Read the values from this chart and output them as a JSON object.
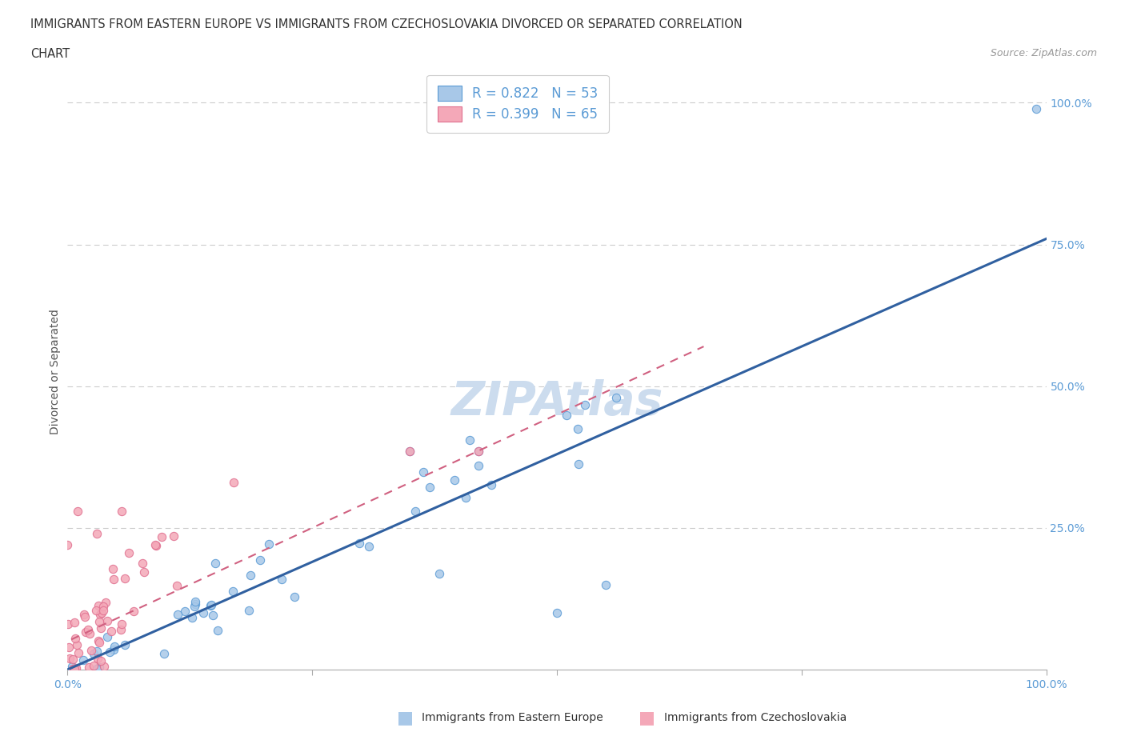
{
  "title_line1": "IMMIGRANTS FROM EASTERN EUROPE VS IMMIGRANTS FROM CZECHOSLOVAKIA DIVORCED OR SEPARATED CORRELATION",
  "title_line2": "CHART",
  "source": "Source: ZipAtlas.com",
  "ylabel": "Divorced or Separated",
  "blue_R": 0.822,
  "blue_N": 53,
  "pink_R": 0.399,
  "pink_N": 65,
  "blue_color": "#a8c8e8",
  "pink_color": "#f4a8b8",
  "blue_edge_color": "#5b9bd5",
  "pink_edge_color": "#e07090",
  "blue_line_color": "#3060a0",
  "pink_line_color": "#d06080",
  "watermark_color": "#ccdcee",
  "legend_label_blue": "Immigrants from Eastern Europe",
  "legend_label_pink": "Immigrants from Czechoslovakia",
  "grid_color": "#cccccc",
  "tick_color": "#5b9bd5",
  "title_color": "#333333",
  "source_color": "#999999"
}
